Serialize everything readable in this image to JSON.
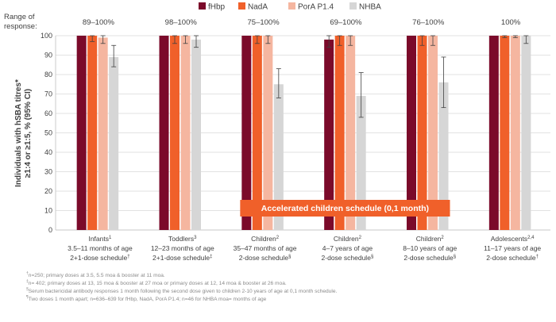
{
  "chart_data": {
    "type": "bar",
    "ylabel_line1": "Individuals with hSBA titres*",
    "ylabel_line2": "≥1:4 or ≥1:5, % (95% CI)",
    "ylim": [
      0,
      100
    ],
    "yticks": [
      0,
      10,
      20,
      30,
      40,
      50,
      60,
      70,
      80,
      90,
      100
    ],
    "grid": true,
    "legend_position": "top",
    "range_header_line1": "Range of",
    "range_header_line2": "response:",
    "series": [
      {
        "name": "fHbp",
        "color": "#7b0a2a",
        "values": [
          100,
          100,
          100,
          98,
          100,
          100
        ],
        "ci_low": [
          null,
          null,
          null,
          94,
          null,
          null
        ],
        "ci_high": [
          null,
          null,
          null,
          100,
          null,
          null
        ]
      },
      {
        "name": "NadA",
        "color": "#f0602a",
        "values": [
          100,
          100,
          100,
          100,
          100,
          100
        ],
        "ci_low": [
          97,
          96,
          96,
          95,
          95,
          99
        ],
        "ci_high": [
          100,
          100,
          100,
          100,
          100,
          100
        ]
      },
      {
        "name": "PorA P1.4",
        "color": "#f5b6a0",
        "values": [
          99,
          100,
          100,
          100,
          100,
          100
        ],
        "ci_low": [
          96,
          96,
          96,
          95,
          95,
          99
        ],
        "ci_high": [
          100,
          100,
          100,
          100,
          100,
          100
        ]
      },
      {
        "name": "NHBA",
        "color": "#d6d6d6",
        "values": [
          89,
          98,
          75,
          69,
          76,
          100
        ],
        "ci_low": [
          84,
          94,
          68,
          58,
          63,
          96
        ],
        "ci_high": [
          95,
          100,
          83,
          81,
          89,
          100
        ]
      }
    ],
    "groups": [
      {
        "range": "89–100%",
        "label_main": "Infants",
        "label_sup": "1",
        "line2": "3.5–11 months of age",
        "line3": "2+1-dose schedule",
        "line3_sup": "†"
      },
      {
        "range": "98–100%",
        "label_main": "Toddlers",
        "label_sup": "3",
        "line2": "12–23 months of age",
        "line3": "2+1-dose schedule",
        "line3_sup": "‡"
      },
      {
        "range": "75–100%",
        "label_main": "Children",
        "label_sup": "2",
        "line2": "35–47 months of age",
        "line3": "2-dose schedule",
        "line3_sup": "§"
      },
      {
        "range": "69–100%",
        "label_main": "Children",
        "label_sup": "2",
        "line2": "4–7 years of age",
        "line3": "2-dose schedule",
        "line3_sup": "§"
      },
      {
        "range": "76–100%",
        "label_main": "Children",
        "label_sup": "2",
        "line2": "8–10 years of age",
        "line3": "2-dose schedule",
        "line3_sup": "§"
      },
      {
        "range": "100%",
        "label_main": "Adolescents",
        "label_sup": "2,4",
        "line2": "11–17 years of age",
        "line3": "2-dose schedule",
        "line3_sup": "†"
      }
    ],
    "annotation": "Accelerated children schedule (0,1 month)",
    "annotation_color": "#f0602a"
  },
  "footnotes": [
    {
      "sym": "†",
      "text": "n=250; primary doses at 3.5, 5.5 moa & booster at 11 moa."
    },
    {
      "sym": "‡",
      "text": "n= 402; primary doses at 13, 15 moa & booster at 27 moa or primary doses at 12, 14 moa & booster at 26 moa."
    },
    {
      "sym": "§",
      "text": "Serum bactericidal antibody responses 1 month following the second dose given to children 2-10 years of age at 0,1 month schedule."
    },
    {
      "sym": "¶",
      "text": "Two doses 1 month apart; n=636–639 for fHbp, NadA, PorA P1.4; n=46 for NHBA moa= months of age"
    }
  ]
}
